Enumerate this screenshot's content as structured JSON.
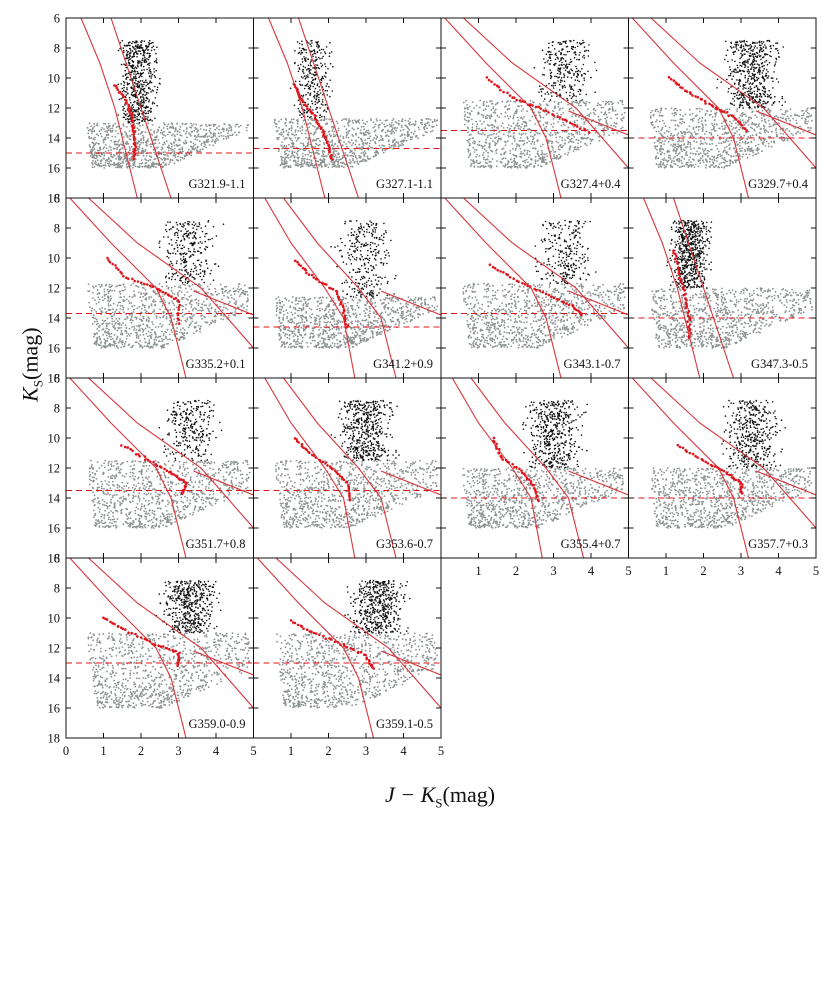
{
  "figure": {
    "xlabel": "J − K_S(mag)",
    "xlabel_var": "J − K",
    "xlabel_sub": "S",
    "xlabel_unit": "(mag)",
    "ylabel_var": "K",
    "ylabel_sub": "S",
    "ylabel_unit": "(mag)"
  },
  "colors": {
    "field_stars_bright": "#111111",
    "field_stars_faint": "#8c9291",
    "red_clump": "#e0141b",
    "model_lines": "#d8363c",
    "limit_line": "#e0141b",
    "axis": "#111111"
  },
  "chart_data": {
    "type": "scatter",
    "description_of_series": [
      "bright stars",
      "faint stars",
      "red clump candidates",
      "extinction model tracks",
      "completeness limit"
    ],
    "xlim": [
      0,
      5
    ],
    "ylim": [
      6,
      18
    ],
    "y_inverted": true,
    "x_ticks": [
      0,
      1,
      2,
      3,
      4,
      5
    ],
    "y_ticks": [
      6,
      8,
      10,
      12,
      14,
      16,
      18
    ],
    "panels": [
      {
        "label": "G321.9-1.1",
        "limit": 15.0,
        "kind": "steep",
        "rc": [
          [
            1.3,
            10.5
          ],
          [
            1.6,
            11.5
          ],
          [
            1.75,
            12.5
          ],
          [
            1.8,
            13.5
          ],
          [
            1.85,
            14.5
          ],
          [
            1.8,
            15.5
          ]
        ],
        "dense": 0.9
      },
      {
        "label": "G327.1-1.1",
        "limit": 14.7,
        "kind": "steep",
        "rc": [
          [
            1.1,
            10.5
          ],
          [
            1.3,
            11.5
          ],
          [
            1.6,
            12.5
          ],
          [
            1.85,
            13.5
          ],
          [
            2.0,
            14.5
          ],
          [
            2.1,
            15.5
          ]
        ],
        "dense": 0.35
      },
      {
        "label": "G327.4+0.4",
        "limit": 13.5,
        "kind": "shallow",
        "rc": [
          [
            1.2,
            10.0
          ],
          [
            1.9,
            11.3
          ],
          [
            2.6,
            12.0
          ],
          [
            3.3,
            12.8
          ],
          [
            4.0,
            13.7
          ]
        ],
        "dense": 0.3
      },
      {
        "label": "G329.7+0.4",
        "limit": 14.0,
        "kind": "shallow",
        "rc": [
          [
            1.1,
            10.0
          ],
          [
            1.6,
            11.0
          ],
          [
            2.2,
            11.8
          ],
          [
            2.8,
            12.6
          ],
          [
            3.2,
            13.6
          ]
        ],
        "dense": 0.8
      },
      {
        "label": "G335.2+0.1",
        "limit": 13.7,
        "kind": "shallow",
        "rc": [
          [
            1.1,
            10.0
          ],
          [
            1.6,
            11.3
          ],
          [
            2.4,
            12.0
          ],
          [
            3.0,
            12.8
          ],
          [
            3.0,
            14.5
          ]
        ],
        "dense": 0.3
      },
      {
        "label": "G341.2+0.9",
        "limit": 14.6,
        "kind": "mid",
        "rc": [
          [
            1.1,
            10.2
          ],
          [
            1.6,
            11.3
          ],
          [
            2.2,
            12.2
          ],
          [
            2.4,
            13.4
          ],
          [
            2.5,
            14.8
          ]
        ],
        "dense": 0.35
      },
      {
        "label": "G343.1-0.7",
        "limit": 13.7,
        "kind": "shallow",
        "rc": [
          [
            1.3,
            10.5
          ],
          [
            2.0,
            11.5
          ],
          [
            2.8,
            12.4
          ],
          [
            3.5,
            13.2
          ],
          [
            3.8,
            13.9
          ]
        ],
        "dense": 0.25
      },
      {
        "label": "G347.3-0.5",
        "limit": 14.0,
        "kind": "steep",
        "rc": [
          [
            1.2,
            9.5
          ],
          [
            1.35,
            11.0
          ],
          [
            1.5,
            12.5
          ],
          [
            1.6,
            14.0
          ],
          [
            1.65,
            15.5
          ]
        ],
        "dense": 1.0
      },
      {
        "label": "G351.7+0.8",
        "limit": 13.5,
        "kind": "shallow",
        "rc": [
          [
            1.5,
            10.5
          ],
          [
            2.2,
            11.5
          ],
          [
            2.8,
            12.3
          ],
          [
            3.2,
            13.0
          ],
          [
            3.1,
            13.8
          ]
        ],
        "dense": 0.3
      },
      {
        "label": "G353.6-0.7",
        "limit": 13.5,
        "kind": "mid",
        "rc": [
          [
            1.1,
            10.0
          ],
          [
            1.5,
            11.0
          ],
          [
            2.1,
            12.0
          ],
          [
            2.5,
            13.0
          ],
          [
            2.6,
            14.3
          ]
        ],
        "dense": 0.75
      },
      {
        "label": "G355.4+0.7",
        "limit": 14.0,
        "kind": "mid",
        "rc": [
          [
            1.4,
            10.0
          ],
          [
            1.6,
            11.3
          ],
          [
            2.2,
            12.3
          ],
          [
            2.5,
            13.3
          ],
          [
            2.6,
            14.3
          ]
        ],
        "dense": 0.7
      },
      {
        "label": "G357.7+0.3",
        "limit": 14.0,
        "kind": "shallow",
        "rc": [
          [
            1.3,
            10.5
          ],
          [
            2.0,
            11.5
          ],
          [
            2.6,
            12.3
          ],
          [
            3.0,
            13.0
          ],
          [
            3.0,
            13.8
          ]
        ],
        "dense": 0.6
      },
      {
        "label": "G359.0-0.9",
        "limit": 13.0,
        "kind": "shallow",
        "rc": [
          [
            1.0,
            10.0
          ],
          [
            1.6,
            10.8
          ],
          [
            2.4,
            11.8
          ],
          [
            3.0,
            12.3
          ],
          [
            3.0,
            13.3
          ]
        ],
        "dense": 0.7
      },
      {
        "label": "G359.1-0.5",
        "limit": 13.0,
        "kind": "shallow",
        "rc": [
          [
            1.0,
            10.2
          ],
          [
            1.6,
            11.0
          ],
          [
            2.4,
            11.8
          ],
          [
            3.0,
            12.5
          ],
          [
            3.2,
            13.5
          ]
        ],
        "dense": 0.7
      }
    ]
  }
}
